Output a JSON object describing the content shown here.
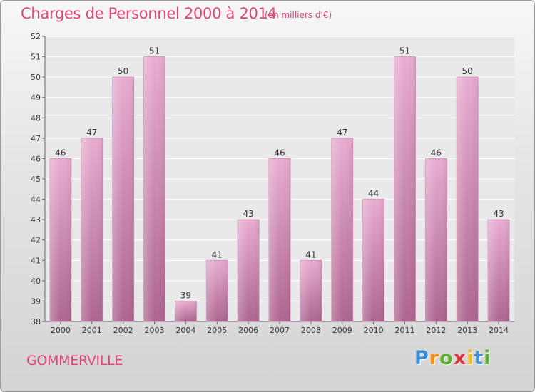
{
  "header": {
    "title": "Charges de Personnel 2000 à 2014",
    "subtitle": "(en milliers d'€)"
  },
  "footer": {
    "town": "GOMMERVILLE",
    "logo": "Proxiti"
  },
  "colors": {
    "title": "#e0457b",
    "bar_light": "#e7a9cd",
    "bar_dark": "#b06a93",
    "logo_letters": [
      "#3a8fd8",
      "#f08a1c",
      "#5bb030",
      "#e0323a",
      "#f2b820",
      "#3a8fd8",
      "#5bb030"
    ]
  },
  "chart_data": {
    "type": "bar",
    "title": "Charges de Personnel 2000 à 2014",
    "subtitle": "(en milliers d'€)",
    "xlabel": "",
    "ylabel": "",
    "categories": [
      "2000",
      "2001",
      "2002",
      "2003",
      "2004",
      "2005",
      "2006",
      "2007",
      "2008",
      "2009",
      "2010",
      "2011",
      "2012",
      "2013",
      "2014"
    ],
    "values": [
      46,
      47,
      50,
      51,
      39,
      41,
      43,
      46,
      41,
      47,
      44,
      51,
      46,
      50,
      43
    ],
    "ylim": [
      38,
      52
    ],
    "yticks": [
      38,
      39,
      40,
      41,
      42,
      43,
      44,
      45,
      46,
      47,
      48,
      49,
      50,
      51,
      52
    ],
    "grid": true,
    "legend": "none"
  }
}
